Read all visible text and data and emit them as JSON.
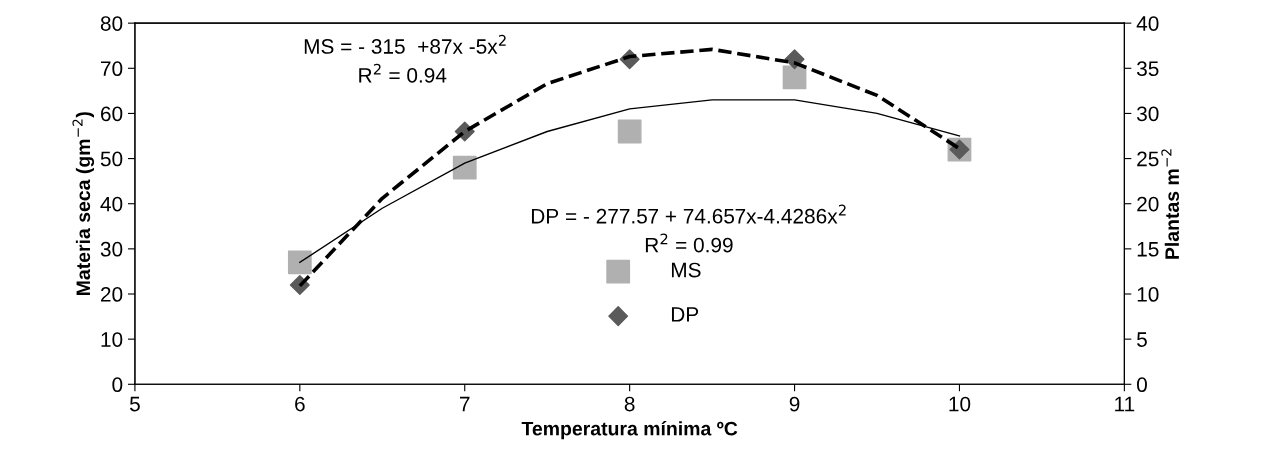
{
  "chart_data": {
    "type": "scatter",
    "xlabel": "Temperatura mínima ºC",
    "ylabel": "Materia seca (gm$^{−2}$)",
    "y2label": "Plantas m$^{−2}$",
    "xlim": [
      5,
      11
    ],
    "xticks": [
      5,
      6,
      7,
      8,
      9,
      10,
      11
    ],
    "ylim": [
      0,
      80
    ],
    "yticks": [
      0,
      10,
      20,
      30,
      40,
      50,
      60,
      70,
      80
    ],
    "y2lim": [
      0,
      40
    ],
    "y2ticks": [
      0,
      5,
      10,
      15,
      20,
      25,
      30,
      35,
      40
    ],
    "grid": false,
    "legend": "center",
    "series": [
      {
        "name": "MS",
        "marker": "square",
        "axis": "y",
        "color": "#b0b0b0",
        "x": [
          6,
          7,
          8,
          9,
          10
        ],
        "values": [
          27,
          48,
          56,
          68,
          52
        ]
      },
      {
        "name": "DP",
        "marker": "diamond",
        "axis": "y2",
        "color": "#5a5a5a",
        "x": [
          6,
          7,
          8,
          9,
          10
        ],
        "values": [
          11,
          28,
          36,
          36,
          26
        ]
      },
      {
        "type": "line",
        "line_style": "solid",
        "axis": "y",
        "color": "#000000",
        "x": [
          6,
          6.5,
          7,
          7.5,
          8,
          8.5,
          9,
          9.5,
          10
        ],
        "values": [
          27,
          39,
          49,
          56,
          61,
          63,
          63,
          60,
          55
        ]
      },
      {
        "type": "line",
        "line_style": "dashed",
        "axis": "y2",
        "color": "#000000",
        "x": [
          6,
          6.5,
          7,
          7.5,
          8,
          8.5,
          9,
          9.5,
          10
        ],
        "values": [
          10.9,
          20.6,
          28,
          33.3,
          36.3,
          37.1,
          35.6,
          32,
          26.1
        ]
      }
    ],
    "annotations": [
      "MS = - 315  +87x -5x$^{2}$",
      "R$^{2}$ = 0.94",
      "DP = - 277.57 + 74.657x-4.4286x$^{2}$",
      "R$^{2}$ = 0.99"
    ]
  }
}
